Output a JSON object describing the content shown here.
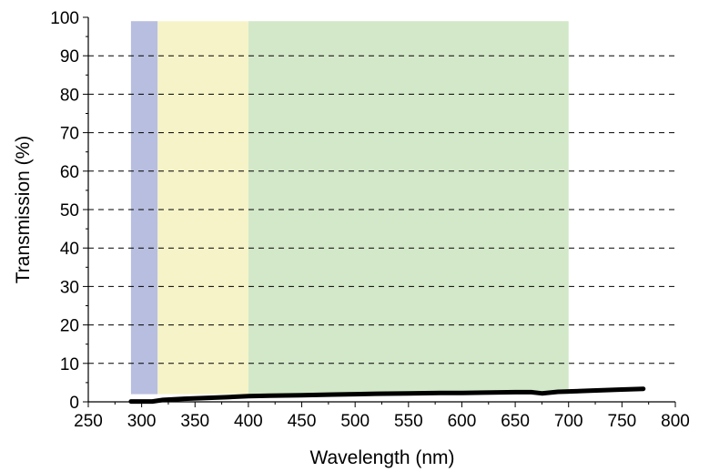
{
  "chart_data": {
    "type": "line",
    "title": "",
    "xlabel": "Wavelength (nm)",
    "ylabel": "Transmission (%)",
    "xlim": [
      250,
      800
    ],
    "ylim": [
      0,
      100
    ],
    "xticks": [
      250,
      300,
      350,
      400,
      450,
      500,
      550,
      600,
      650,
      700,
      750,
      800
    ],
    "yticks": [
      0,
      10,
      20,
      30,
      40,
      50,
      60,
      70,
      80,
      90,
      100
    ],
    "grid": "horizontal dashed",
    "bands": [
      {
        "x_start": 290,
        "x_end": 315,
        "y_start": 2,
        "y_end": 99,
        "color": "#b8bedf"
      },
      {
        "x_start": 315,
        "x_end": 400,
        "y_start": 2,
        "y_end": 99,
        "color": "#f6f3c8"
      },
      {
        "x_start": 400,
        "x_end": 700,
        "y_start": 2,
        "y_end": 99,
        "color": "#d3e8c8"
      }
    ],
    "series": [
      {
        "color": "#000000",
        "x": [
          290,
          300,
          310,
          320,
          340,
          360,
          380,
          400,
          420,
          450,
          480,
          500,
          520,
          550,
          580,
          600,
          620,
          650,
          665,
          675,
          690,
          720,
          750,
          770
        ],
        "y": [
          0.1,
          0.1,
          0.1,
          0.5,
          0.8,
          1.0,
          1.2,
          1.5,
          1.6,
          1.7,
          1.9,
          2.0,
          2.1,
          2.2,
          2.3,
          2.3,
          2.4,
          2.5,
          2.5,
          2.2,
          2.6,
          2.9,
          3.2,
          3.4
        ]
      }
    ]
  }
}
